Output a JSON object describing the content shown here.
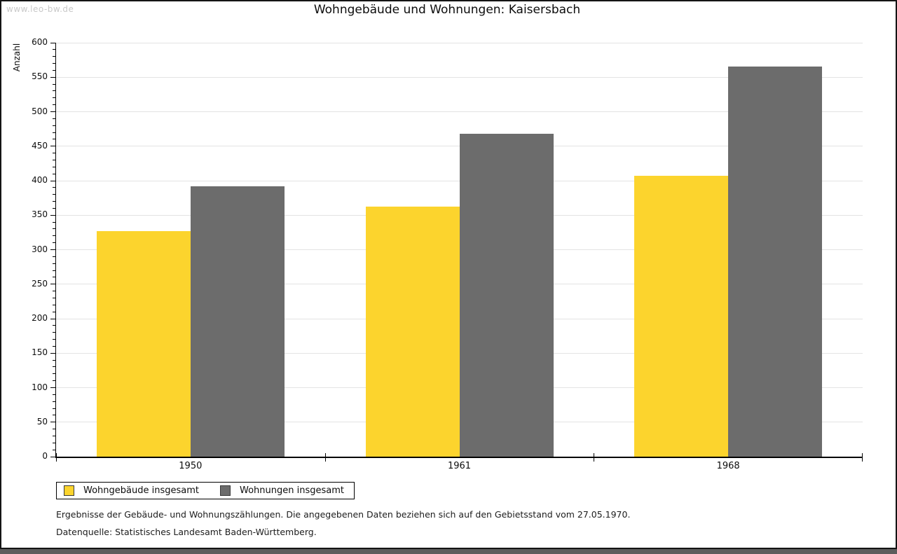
{
  "watermark": "www.leo-bw.de",
  "title": "Wohngebäude und Wohnungen: Kaisersbach",
  "chart_data": {
    "type": "bar",
    "title": "Wohngebäude und Wohnungen: Kaisersbach",
    "xlabel": "",
    "ylabel": "Anzahl",
    "categories": [
      "1950",
      "1961",
      "1968"
    ],
    "series": [
      {
        "name": "Wohngebäude insgesamt",
        "color": "#fcd42d",
        "values": [
          327,
          362,
          407
        ]
      },
      {
        "name": "Wohnungen insgesamt",
        "color": "#6c6c6c",
        "values": [
          392,
          468,
          565
        ]
      }
    ],
    "ylim": [
      0,
      600
    ],
    "ytick_major": 50,
    "ytick_minor": 10,
    "grid": true,
    "legend_position": "bottom-left"
  },
  "footnotes": [
    "Ergebnisse der Gebäude- und Wohnungszählungen. Die angegebenen Daten beziehen sich auf den Gebietsstand vom 27.05.1970.",
    "Datenquelle: Statistisches Landesamt Baden-Württemberg."
  ]
}
